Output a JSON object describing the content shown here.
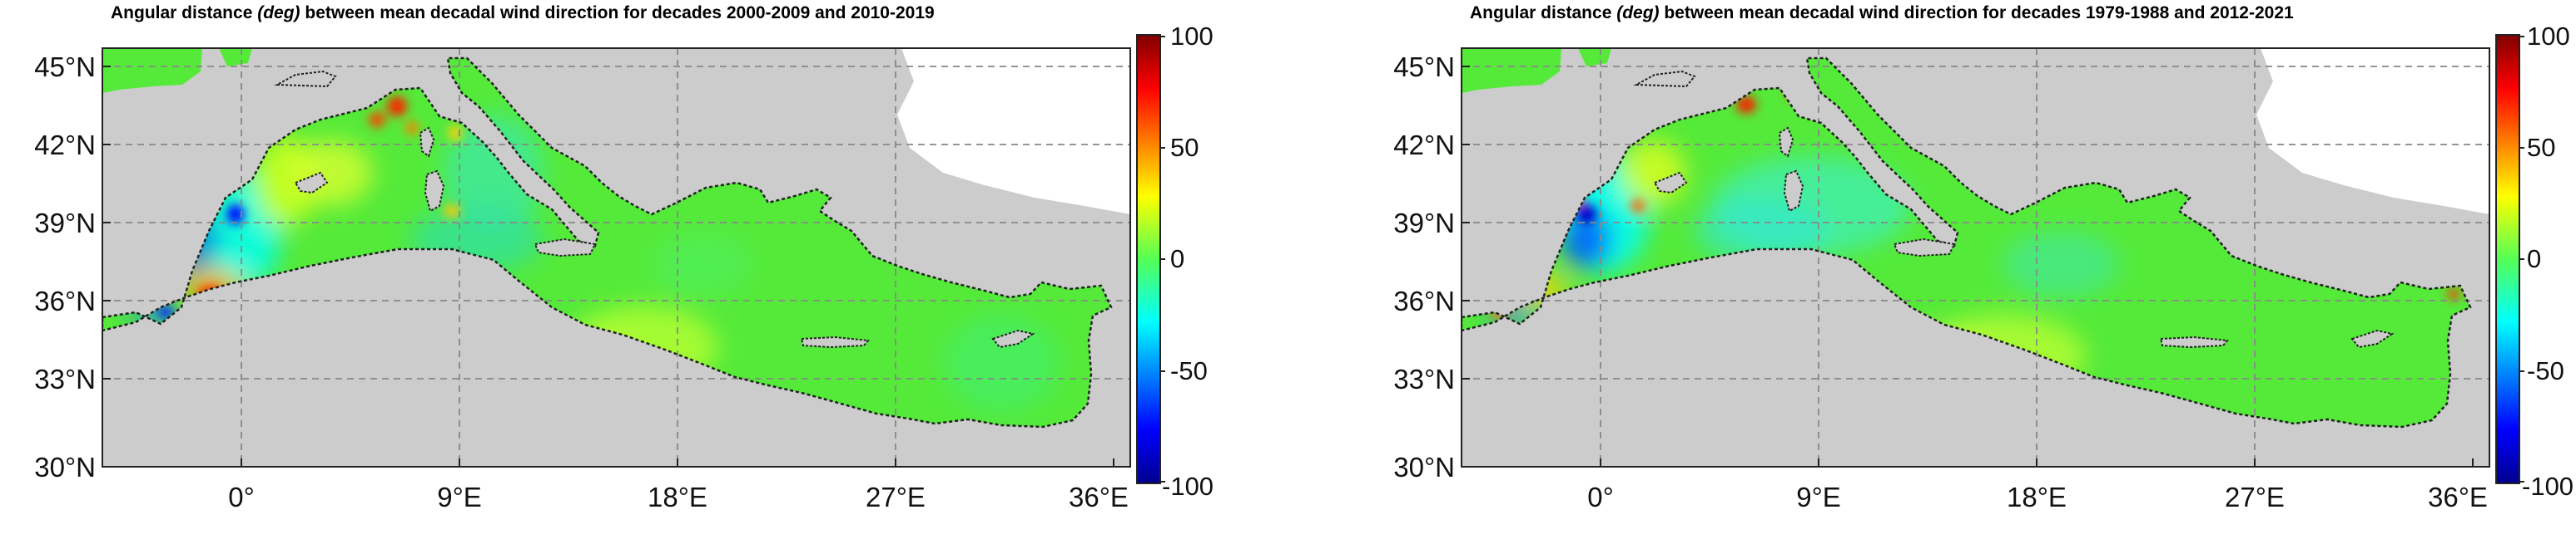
{
  "maps": [
    {
      "title_parts": [
        "Angular distance ",
        "(deg)",
        " between mean decadal wind direction for decades 2000-2009 and 2010-2019"
      ],
      "lat_labels": [
        "45°N",
        "42°N",
        "39°N",
        "36°N",
        "33°N",
        "30°N"
      ],
      "lon_labels": [
        "0°",
        "9°E",
        "18°E",
        "27°E",
        "36°E"
      ],
      "colorbar_labels": [
        "100",
        "50",
        "0",
        "-50",
        "-100"
      ]
    },
    {
      "title_parts": [
        "Angular distance ",
        "(deg)",
        " between mean decadal wind direction for decades 1979-1988 and 2012-2021"
      ],
      "lat_labels": [
        "45°N",
        "42°N",
        "39°N",
        "36°N",
        "33°N",
        "30°N"
      ],
      "lon_labels": [
        "0°",
        "9°E",
        "18°E",
        "27°E",
        "36°E"
      ],
      "colorbar_labels": [
        "100",
        "50",
        "0",
        "-50",
        "-100"
      ]
    }
  ],
  "colors": {
    "land": "#cccccc",
    "sea_base": "#55ea3a",
    "colormap": [
      "#00008f",
      "#0000ff",
      "#00ffff",
      "#55ff55",
      "#ffff00",
      "#ff0000",
      "#800000"
    ]
  },
  "axes": {
    "lon_range": [
      -6,
      37
    ],
    "lat_range": [
      30,
      46
    ]
  }
}
